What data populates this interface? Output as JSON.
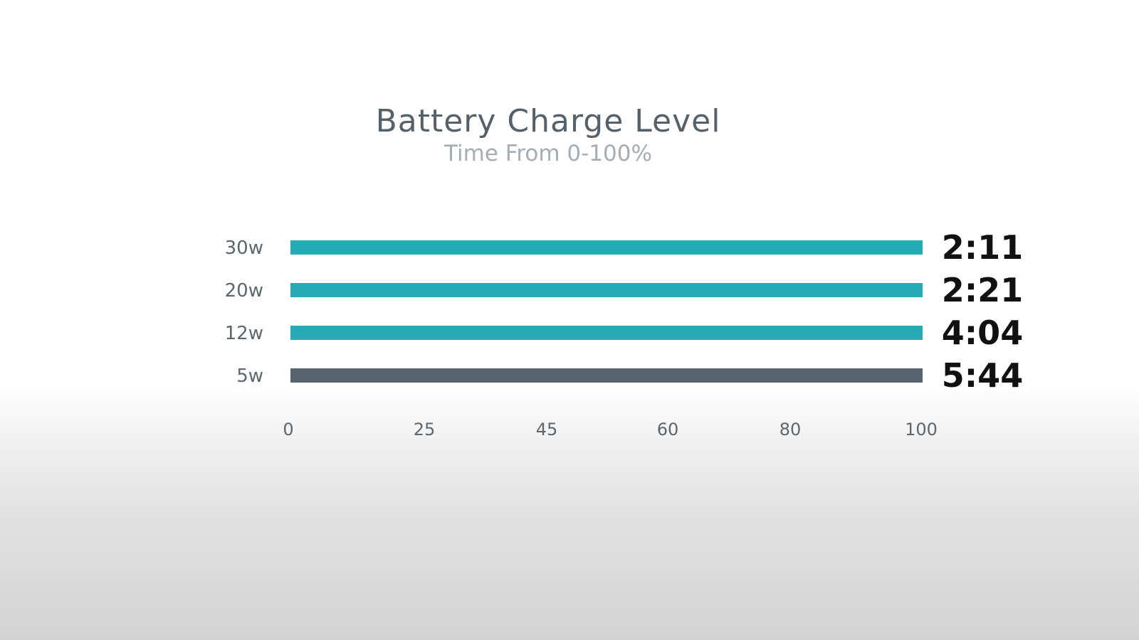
{
  "chart_data": {
    "type": "bar",
    "orientation": "horizontal",
    "title": "Battery Charge Level",
    "subtitle": "Time From 0-100%",
    "categories": [
      "30w",
      "20w",
      "12w",
      "5w"
    ],
    "values": [
      100,
      100,
      100,
      100
    ],
    "data_labels": [
      "2:11",
      "2:21",
      "4:04",
      "5:44"
    ],
    "bar_colors": [
      "#26aab5",
      "#26aab5",
      "#26aab5",
      "#56646d"
    ],
    "x_ticks": [
      "0",
      "25",
      "45",
      "60",
      "80",
      "100"
    ],
    "xlim": [
      0,
      100
    ],
    "grid": false,
    "legend": "none"
  },
  "colors": {
    "accent": "#26aab5",
    "muted_bar": "#56646d",
    "title": "#55616a",
    "subtitle": "#a6adb2"
  }
}
